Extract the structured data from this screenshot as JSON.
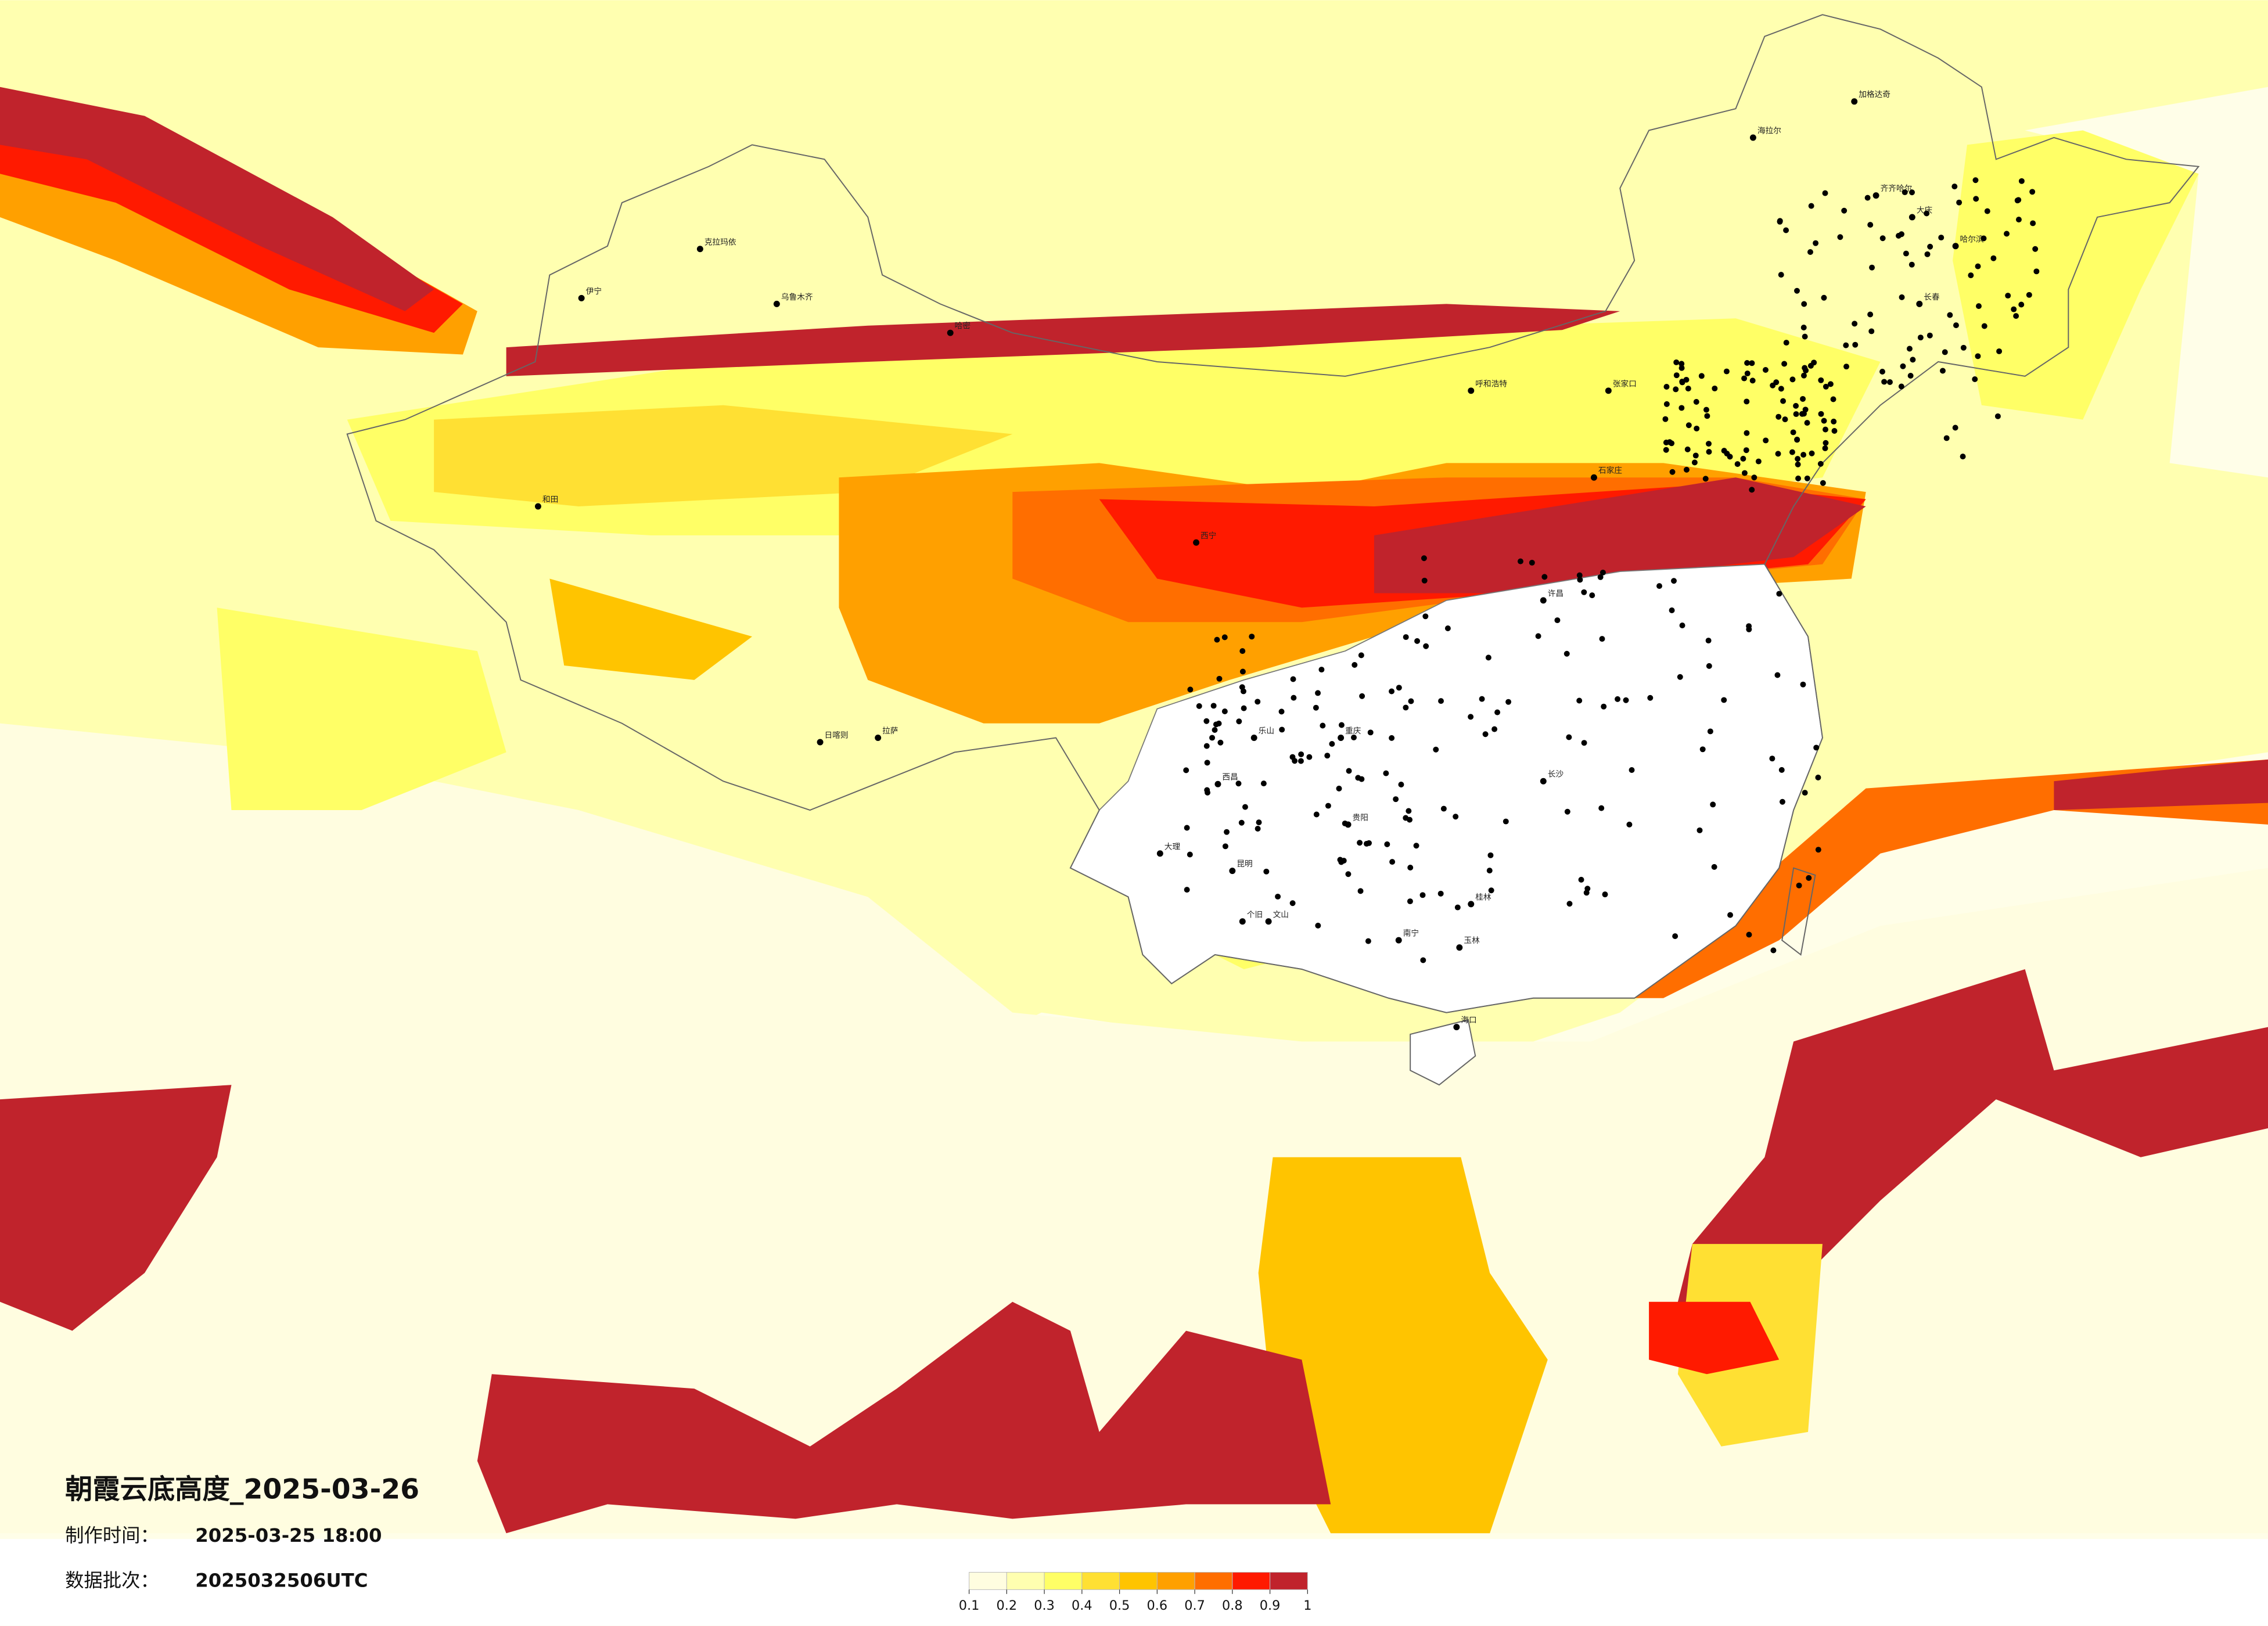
{
  "title": "朝霞云底高度_2025-03-26",
  "info": [
    {
      "label": "制作时间：",
      "value": "2025-03-25 18:00"
    },
    {
      "label": "数据批次：",
      "value": "2025032506UTC"
    }
  ],
  "colorbar": {
    "ticks": [
      0.1,
      0.2,
      0.3,
      0.4,
      0.5,
      0.6,
      0.7,
      0.8,
      0.9,
      1
    ],
    "colors": [
      "#fffde0",
      "#ffffb0",
      "#ffff66",
      "#ffe033",
      "#ffc400",
      "#ffa000",
      "#ff6e00",
      "#ff1a00",
      "#c0232c"
    ]
  },
  "cities": [
    "克拉玛依",
    "伊宁",
    "乌鲁木齐",
    "哈密",
    "和田",
    "日喀则",
    "拉萨",
    "西宁",
    "呼和浩特",
    "张家口",
    "石家庄",
    "海拉尔",
    "加格达奇",
    "齐齐哈尔",
    "大庆",
    "哈尔滨",
    "长春",
    "许昌",
    "长沙",
    "重庆",
    "乐山",
    "西昌",
    "大理",
    "昆明",
    "贵阳",
    "个旧",
    "文山",
    "桂林",
    "南宁",
    "玉林",
    "海口"
  ]
}
